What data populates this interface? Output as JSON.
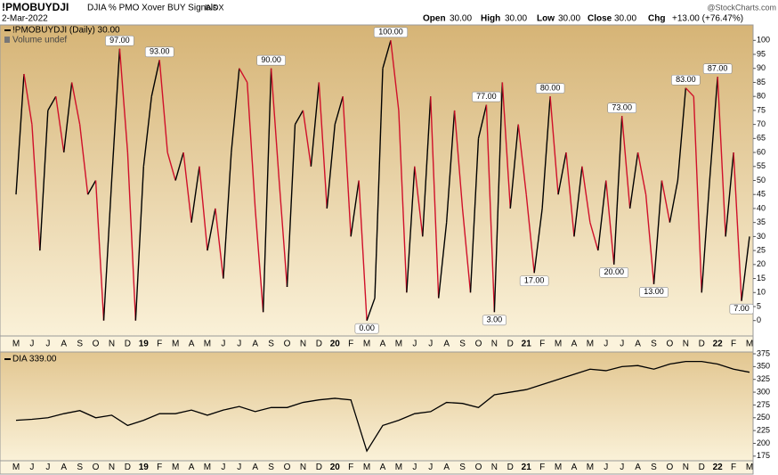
{
  "header": {
    "symbol": "!PMOBUYDJI",
    "description": "DJIA % PMO Xover BUY Signals",
    "exchange": "INDX",
    "date": "2-Mar-2022",
    "copyright": "@StockCharts.com",
    "quote": [
      {
        "label": "Open",
        "value": "30.00"
      },
      {
        "label": "High",
        "value": "30.00"
      },
      {
        "label": "Low",
        "value": "30.00"
      },
      {
        "label": "Close",
        "value": "30.00"
      },
      {
        "label": "Chg",
        "value": "+13.00 (+76.47%)"
      }
    ]
  },
  "chart_data": [
    {
      "type": "line",
      "volume_label": "Volume undef",
      "categories": [
        "M",
        null,
        "J",
        null,
        "J",
        null,
        "A",
        null,
        "S",
        null,
        "O",
        null,
        "N",
        null,
        "D",
        null,
        "19",
        null,
        "F",
        null,
        "M",
        null,
        "A",
        null,
        "M",
        null,
        "J",
        null,
        "J",
        null,
        "A",
        null,
        "S",
        null,
        "O",
        null,
        "N",
        null,
        "D",
        null,
        "20",
        null,
        "F",
        null,
        "M",
        null,
        "A",
        null,
        "M",
        null,
        "J",
        null,
        "J",
        null,
        "A",
        null,
        "S",
        null,
        "O",
        null,
        "N",
        null,
        "D",
        null,
        "21",
        null,
        "F",
        null,
        "M",
        null,
        "A",
        null,
        "M",
        null,
        "J",
        null,
        "J",
        null,
        "A",
        null,
        "S",
        null,
        "O",
        null,
        "N",
        null,
        "D",
        null,
        "22",
        null,
        "F",
        null,
        "M"
      ],
      "series": [
        {
          "name": "!PMOBUYDJI (Daily) 30.00",
          "color": "#000000",
          "down_color": "#d0102a",
          "values": [
            45,
            88,
            70,
            25,
            75,
            80,
            60,
            85,
            70,
            45,
            50,
            0,
            50,
            97,
            60,
            0,
            55,
            80,
            93,
            60,
            50,
            60,
            35,
            55,
            25,
            40,
            15,
            60,
            90,
            85,
            40,
            3,
            90,
            50,
            12,
            70,
            75,
            55,
            85,
            40,
            70,
            80,
            30,
            50,
            0,
            8,
            90,
            100,
            75,
            10,
            55,
            30,
            80,
            8,
            35,
            75,
            40,
            10,
            65,
            77,
            3,
            85,
            40,
            70,
            45,
            17,
            40,
            80,
            45,
            60,
            30,
            55,
            35,
            25,
            50,
            20,
            73,
            40,
            60,
            45,
            13,
            50,
            35,
            50,
            83,
            80,
            10,
            50,
            87,
            30,
            60,
            7,
            30
          ],
          "value_labels": [
            null,
            null,
            null,
            null,
            null,
            null,
            null,
            null,
            null,
            null,
            null,
            null,
            null,
            "97.00",
            null,
            null,
            null,
            null,
            "93.00",
            null,
            null,
            null,
            null,
            null,
            null,
            null,
            null,
            null,
            null,
            null,
            null,
            null,
            "90.00",
            null,
            null,
            null,
            null,
            null,
            null,
            null,
            null,
            null,
            null,
            null,
            "0.00",
            null,
            null,
            "100.00",
            null,
            null,
            null,
            null,
            null,
            null,
            null,
            null,
            null,
            null,
            null,
            "77.00",
            "3.00",
            null,
            null,
            null,
            null,
            "17.00",
            null,
            "80.00",
            null,
            null,
            null,
            null,
            null,
            null,
            null,
            "20.00",
            "73.00",
            null,
            null,
            null,
            "13.00",
            null,
            null,
            null,
            "83.00",
            null,
            null,
            null,
            "87.00",
            null,
            null,
            "7.00",
            null
          ]
        }
      ],
      "ylim": [
        -5.5,
        105.5
      ],
      "yticks": [
        0,
        5,
        10,
        15,
        20,
        25,
        30,
        35,
        40,
        45,
        50,
        55,
        60,
        65,
        70,
        75,
        80,
        85,
        90,
        95,
        100
      ]
    },
    {
      "type": "line",
      "categories": [
        "M",
        "J",
        "J",
        "A",
        "S",
        "O",
        "N",
        "D",
        "19",
        "F",
        "M",
        "A",
        "M",
        "J",
        "J",
        "A",
        "S",
        "O",
        "N",
        "D",
        "20",
        "F",
        "M",
        "A",
        "M",
        "J",
        "J",
        "A",
        "S",
        "O",
        "N",
        "D",
        "21",
        "F",
        "M",
        "A",
        "M",
        "J",
        "J",
        "A",
        "S",
        "O",
        "N",
        "D",
        "22",
        "F",
        "M"
      ],
      "series": [
        {
          "name": "DIA 339.00",
          "color": "#000000",
          "values": [
            245,
            247,
            250,
            258,
            264,
            250,
            255,
            235,
            245,
            258,
            258,
            265,
            255,
            265,
            272,
            262,
            270,
            270,
            280,
            285,
            288,
            285,
            185,
            235,
            245,
            258,
            262,
            280,
            278,
            270,
            295,
            300,
            305,
            315,
            325,
            335,
            345,
            342,
            350,
            352,
            345,
            355,
            360,
            360,
            355,
            345,
            339
          ]
        }
      ],
      "ylim": [
        166,
        378.5
      ],
      "yticks": [
        175,
        200,
        225,
        250,
        275,
        300,
        325,
        350,
        375
      ]
    }
  ]
}
